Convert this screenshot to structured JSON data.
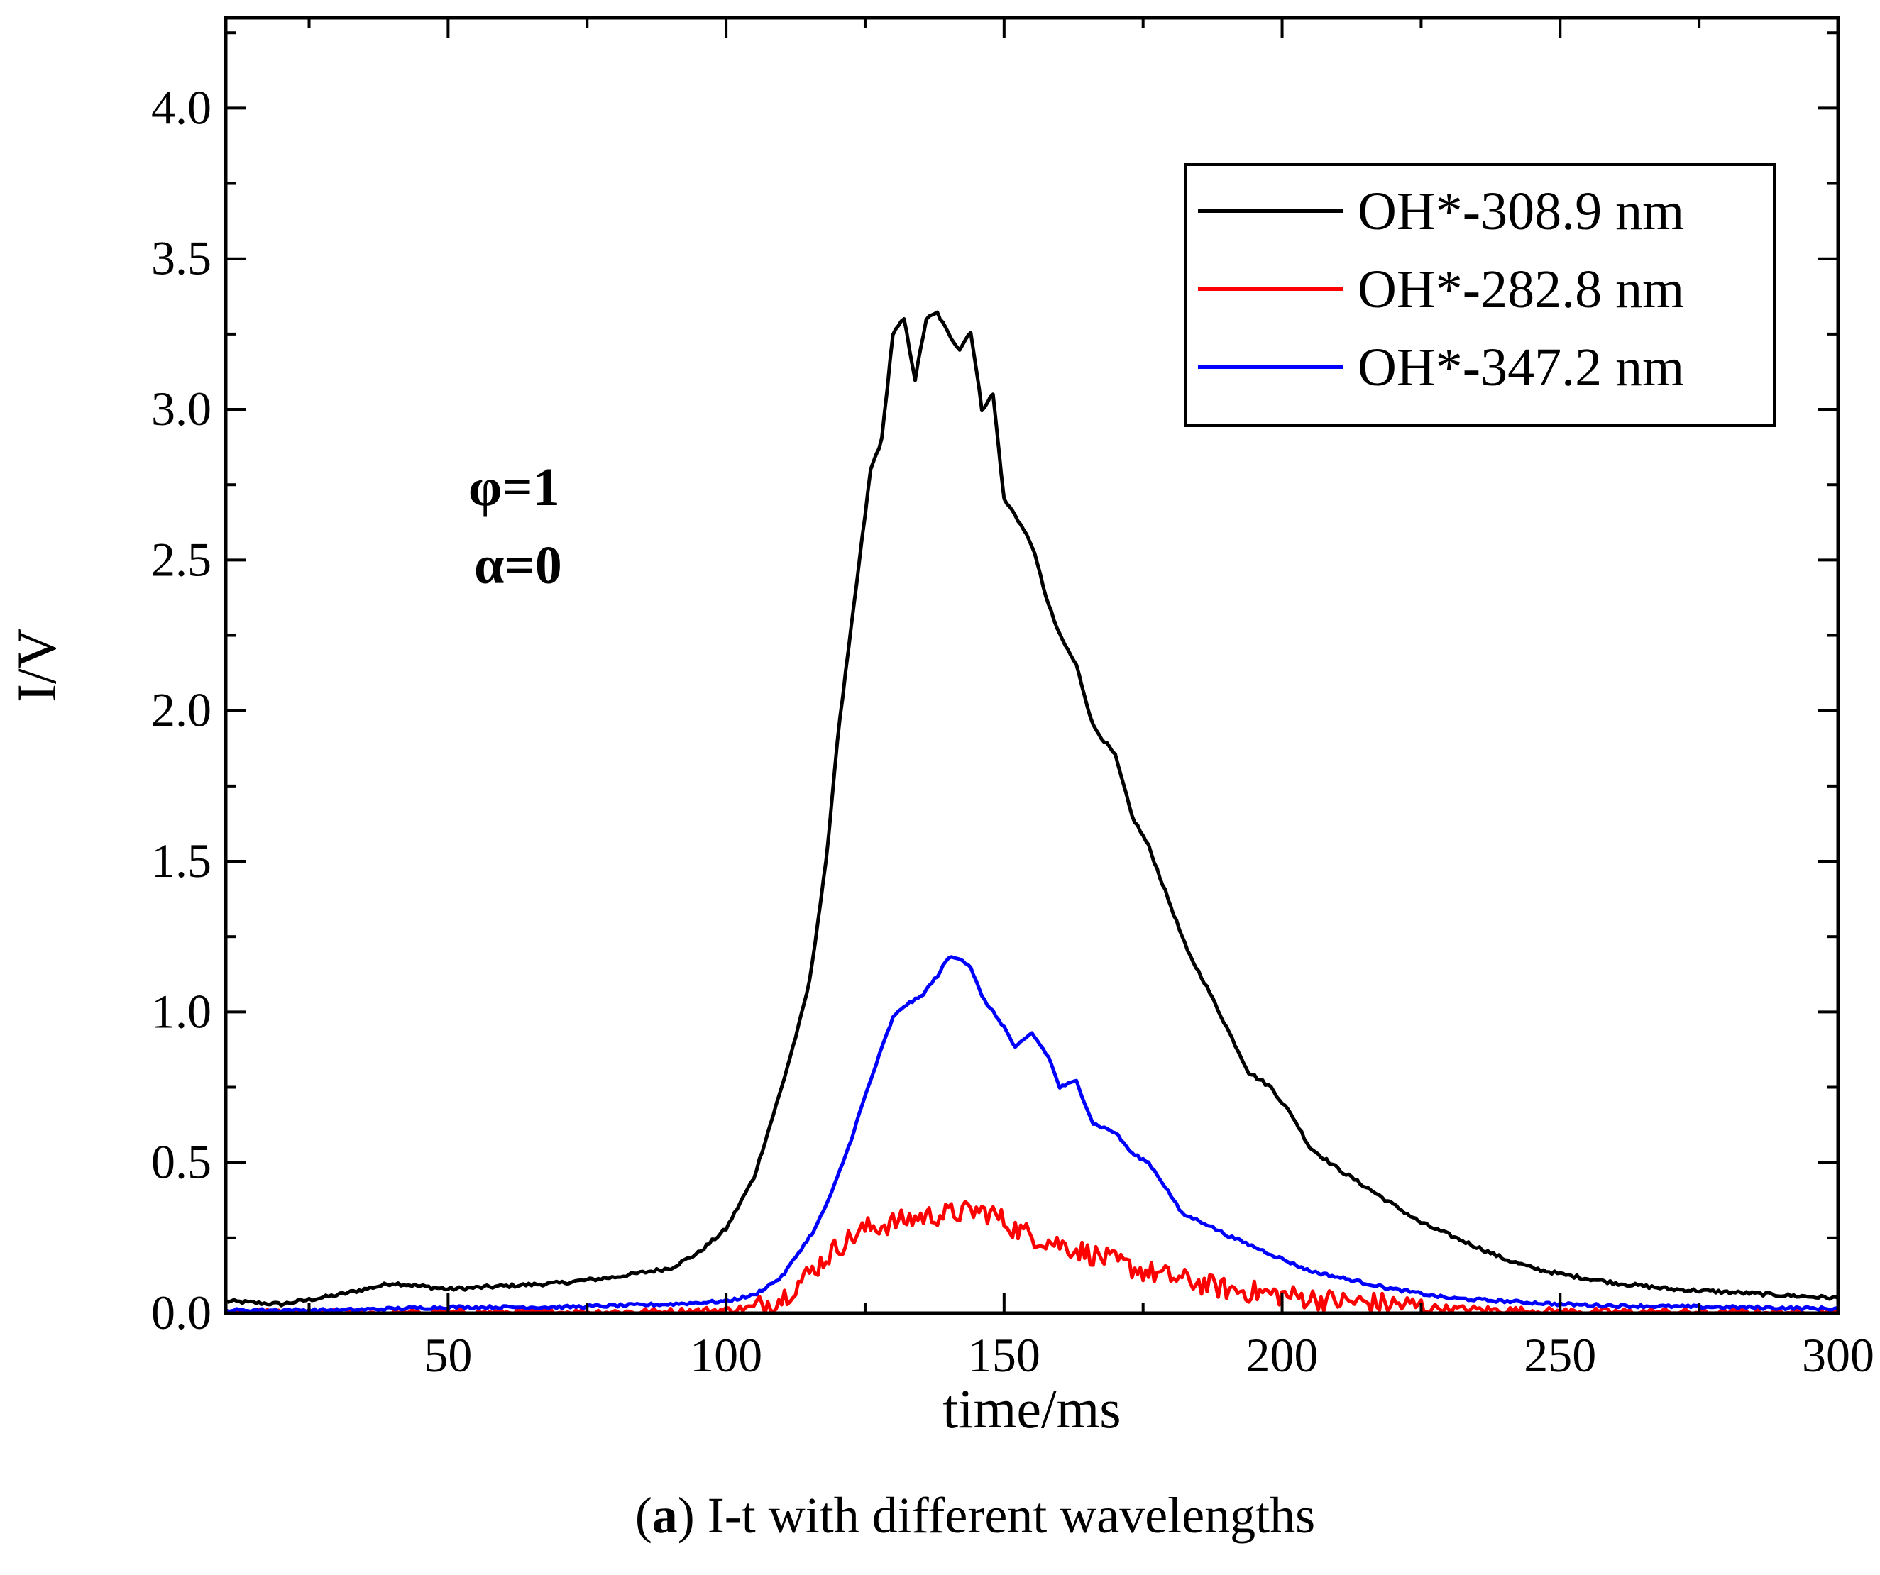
{
  "chart_data": {
    "type": "line",
    "title": "",
    "xlabel": "time/ms",
    "ylabel": "I/V",
    "xlim": [
      10,
      300
    ],
    "ylim": [
      0,
      4.3
    ],
    "x_ticks": [
      50,
      100,
      150,
      200,
      250,
      300
    ],
    "x_tick_labels": [
      "50",
      "100",
      "150",
      "200",
      "250",
      "300"
    ],
    "y_ticks": [
      0.0,
      0.5,
      1.0,
      1.5,
      2.0,
      2.5,
      3.0,
      3.5,
      4.0
    ],
    "y_tick_labels": [
      "0.0",
      "0.5",
      "1.0",
      "1.5",
      "2.0",
      "2.5",
      "3.0",
      "3.5",
      "4.0"
    ],
    "legend_position": "top-right",
    "annotations": [
      "φ=1",
      "α=0"
    ],
    "caption": {
      "prefix": "(",
      "letter": "a",
      "text": ") I-t with different wavelengths"
    },
    "series": [
      {
        "name": "OH*-308.9 nm",
        "color": "#000000",
        "points": [
          [
            10,
            0.04
          ],
          [
            20,
            0.03
          ],
          [
            30,
            0.06
          ],
          [
            40,
            0.1
          ],
          [
            50,
            0.08
          ],
          [
            60,
            0.09
          ],
          [
            70,
            0.1
          ],
          [
            80,
            0.12
          ],
          [
            90,
            0.15
          ],
          [
            95,
            0.2
          ],
          [
            100,
            0.28
          ],
          [
            105,
            0.45
          ],
          [
            110,
            0.75
          ],
          [
            113,
            0.95
          ],
          [
            115,
            1.1
          ],
          [
            118,
            1.5
          ],
          [
            120,
            1.9
          ],
          [
            122,
            2.2
          ],
          [
            124,
            2.5
          ],
          [
            126,
            2.8
          ],
          [
            128,
            2.9
          ],
          [
            130,
            3.25
          ],
          [
            132,
            3.3
          ],
          [
            134,
            3.1
          ],
          [
            136,
            3.3
          ],
          [
            138,
            3.32
          ],
          [
            140,
            3.25
          ],
          [
            142,
            3.2
          ],
          [
            144,
            3.26
          ],
          [
            146,
            3.0
          ],
          [
            148,
            3.05
          ],
          [
            150,
            2.7
          ],
          [
            152,
            2.65
          ],
          [
            155,
            2.55
          ],
          [
            158,
            2.35
          ],
          [
            160,
            2.25
          ],
          [
            163,
            2.15
          ],
          [
            166,
            1.95
          ],
          [
            170,
            1.85
          ],
          [
            173,
            1.65
          ],
          [
            176,
            1.55
          ],
          [
            180,
            1.35
          ],
          [
            183,
            1.2
          ],
          [
            186,
            1.1
          ],
          [
            190,
            0.95
          ],
          [
            194,
            0.8
          ],
          [
            198,
            0.75
          ],
          [
            202,
            0.65
          ],
          [
            205,
            0.55
          ],
          [
            210,
            0.48
          ],
          [
            215,
            0.42
          ],
          [
            220,
            0.36
          ],
          [
            225,
            0.3
          ],
          [
            230,
            0.26
          ],
          [
            235,
            0.22
          ],
          [
            240,
            0.18
          ],
          [
            245,
            0.15
          ],
          [
            250,
            0.13
          ],
          [
            260,
            0.1
          ],
          [
            270,
            0.08
          ],
          [
            280,
            0.07
          ],
          [
            290,
            0.06
          ],
          [
            300,
            0.05
          ]
        ]
      },
      {
        "name": "OH*-282.8 nm",
        "color": "#ff0000",
        "points": [
          [
            10,
            0.0
          ],
          [
            50,
            0.0
          ],
          [
            90,
            0.005
          ],
          [
            100,
            0.01
          ],
          [
            105,
            0.02
          ],
          [
            110,
            0.05
          ],
          [
            113,
            0.1
          ],
          [
            116,
            0.15
          ],
          [
            120,
            0.22
          ],
          [
            125,
            0.28
          ],
          [
            130,
            0.3
          ],
          [
            135,
            0.32
          ],
          [
            140,
            0.33
          ],
          [
            145,
            0.34
          ],
          [
            148,
            0.33
          ],
          [
            152,
            0.28
          ],
          [
            156,
            0.25
          ],
          [
            160,
            0.23
          ],
          [
            165,
            0.2
          ],
          [
            170,
            0.17
          ],
          [
            175,
            0.14
          ],
          [
            180,
            0.12
          ],
          [
            185,
            0.1
          ],
          [
            190,
            0.08
          ],
          [
            195,
            0.07
          ],
          [
            200,
            0.06
          ],
          [
            210,
            0.04
          ],
          [
            220,
            0.03
          ],
          [
            230,
            0.015
          ],
          [
            240,
            0.01
          ],
          [
            250,
            0.005
          ],
          [
            300,
            0.0
          ]
        ]
      },
      {
        "name": "OH*-347.2 nm",
        "color": "#0000ff",
        "points": [
          [
            10,
            0.01
          ],
          [
            30,
            0.01
          ],
          [
            50,
            0.02
          ],
          [
            70,
            0.02
          ],
          [
            90,
            0.03
          ],
          [
            100,
            0.04
          ],
          [
            105,
            0.06
          ],
          [
            110,
            0.12
          ],
          [
            113,
            0.2
          ],
          [
            116,
            0.28
          ],
          [
            119,
            0.4
          ],
          [
            122,
            0.55
          ],
          [
            125,
            0.72
          ],
          [
            128,
            0.88
          ],
          [
            130,
            0.98
          ],
          [
            132,
            1.02
          ],
          [
            135,
            1.05
          ],
          [
            138,
            1.12
          ],
          [
            140,
            1.18
          ],
          [
            142,
            1.18
          ],
          [
            144,
            1.15
          ],
          [
            146,
            1.05
          ],
          [
            148,
            1.0
          ],
          [
            150,
            0.95
          ],
          [
            152,
            0.88
          ],
          [
            155,
            0.93
          ],
          [
            158,
            0.85
          ],
          [
            160,
            0.75
          ],
          [
            163,
            0.77
          ],
          [
            166,
            0.63
          ],
          [
            170,
            0.6
          ],
          [
            173,
            0.53
          ],
          [
            176,
            0.5
          ],
          [
            179,
            0.42
          ],
          [
            182,
            0.33
          ],
          [
            186,
            0.3
          ],
          [
            190,
            0.26
          ],
          [
            195,
            0.22
          ],
          [
            200,
            0.18
          ],
          [
            205,
            0.14
          ],
          [
            210,
            0.12
          ],
          [
            215,
            0.1
          ],
          [
            220,
            0.08
          ],
          [
            230,
            0.05
          ],
          [
            240,
            0.04
          ],
          [
            250,
            0.03
          ],
          [
            260,
            0.025
          ],
          [
            280,
            0.02
          ],
          [
            300,
            0.015
          ]
        ]
      }
    ]
  }
}
